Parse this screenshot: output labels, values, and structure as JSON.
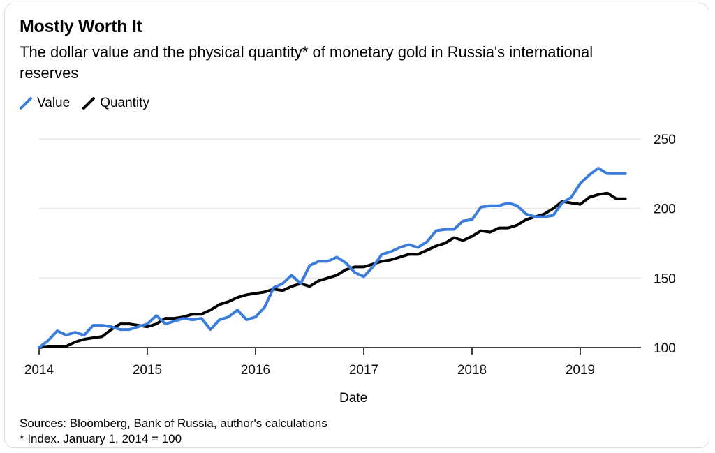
{
  "title": "Mostly Worth It",
  "subtitle": "The dollar value and the physical quantity* of monetary gold in Russia's international reserves",
  "colors": {
    "value": "#3b7ddd",
    "quantity": "#000000",
    "grid": "#e6e6e6",
    "axis": "#000000"
  },
  "footer": {
    "sources": "Sources: Bloomberg, Bank of Russia, author's calculations",
    "note": "* Index. January 1, 2014 = 100"
  },
  "chart_data": {
    "type": "line",
    "title": "Mostly Worth It",
    "xlabel": "Date",
    "ylabel": "",
    "xlim": [
      2014.0,
      2019.5
    ],
    "ylim": [
      100,
      250
    ],
    "yticks": [
      100,
      150,
      200,
      250
    ],
    "xticks": [
      2014,
      2015,
      2016,
      2017,
      2018,
      2019
    ],
    "xtick_labels": [
      "2014",
      "2015",
      "2016",
      "2017",
      "2018",
      "2019"
    ],
    "ytick_labels": [
      "100",
      "150",
      "200",
      "250"
    ],
    "grid": "horizontal",
    "legend": "top-left",
    "series": [
      {
        "name": "Value",
        "x": [
          2014.0,
          2014.083,
          2014.167,
          2014.25,
          2014.333,
          2014.417,
          2014.5,
          2014.583,
          2014.667,
          2014.75,
          2014.833,
          2014.917,
          2015.0,
          2015.083,
          2015.167,
          2015.25,
          2015.333,
          2015.417,
          2015.5,
          2015.583,
          2015.667,
          2015.75,
          2015.833,
          2015.917,
          2016.0,
          2016.083,
          2016.167,
          2016.25,
          2016.333,
          2016.417,
          2016.5,
          2016.583,
          2016.667,
          2016.75,
          2016.833,
          2016.917,
          2017.0,
          2017.083,
          2017.167,
          2017.25,
          2017.333,
          2017.417,
          2017.5,
          2017.583,
          2017.667,
          2017.75,
          2017.833,
          2017.917,
          2018.0,
          2018.083,
          2018.167,
          2018.25,
          2018.333,
          2018.417,
          2018.5,
          2018.583,
          2018.667,
          2018.75,
          2018.833,
          2018.917,
          2019.0,
          2019.083,
          2019.167,
          2019.25,
          2019.333,
          2019.417
        ],
        "y": [
          100,
          105,
          112,
          109,
          111,
          109,
          116,
          116,
          115,
          113,
          113,
          115,
          117,
          123,
          117,
          119,
          121,
          120,
          121,
          113,
          120,
          122,
          127,
          120,
          122,
          129,
          143,
          146,
          152,
          146,
          159,
          162,
          162,
          165,
          161,
          154,
          151,
          158,
          167,
          169,
          172,
          174,
          172,
          176,
          184,
          185,
          185,
          191,
          192,
          201,
          202,
          202,
          204,
          202,
          196,
          194,
          194,
          195,
          204,
          208,
          218,
          224,
          229,
          225,
          225,
          225
        ]
      },
      {
        "name": "Quantity",
        "x": [
          2014.0,
          2014.083,
          2014.167,
          2014.25,
          2014.333,
          2014.417,
          2014.5,
          2014.583,
          2014.667,
          2014.75,
          2014.833,
          2014.917,
          2015.0,
          2015.083,
          2015.167,
          2015.25,
          2015.333,
          2015.417,
          2015.5,
          2015.583,
          2015.667,
          2015.75,
          2015.833,
          2015.917,
          2016.0,
          2016.083,
          2016.167,
          2016.25,
          2016.333,
          2016.417,
          2016.5,
          2016.583,
          2016.667,
          2016.75,
          2016.833,
          2016.917,
          2017.0,
          2017.083,
          2017.167,
          2017.25,
          2017.333,
          2017.417,
          2017.5,
          2017.583,
          2017.667,
          2017.75,
          2017.833,
          2017.917,
          2018.0,
          2018.083,
          2018.167,
          2018.25,
          2018.333,
          2018.417,
          2018.5,
          2018.583,
          2018.667,
          2018.75,
          2018.833,
          2018.917,
          2019.0,
          2019.083,
          2019.167,
          2019.25,
          2019.333,
          2019.417
        ],
        "y": [
          100,
          101,
          101,
          101,
          104,
          106,
          107,
          108,
          113,
          117,
          117,
          116,
          115,
          117,
          121,
          121,
          122,
          124,
          124,
          127,
          131,
          133,
          136,
          138,
          139,
          140,
          142,
          141,
          144,
          146,
          144,
          148,
          150,
          152,
          156,
          158,
          158,
          160,
          162,
          163,
          165,
          167,
          167,
          170,
          173,
          175,
          179,
          177,
          180,
          184,
          183,
          186,
          186,
          188,
          192,
          194,
          196,
          200,
          205,
          204,
          203,
          208,
          210,
          211,
          207,
          207
        ]
      }
    ]
  }
}
